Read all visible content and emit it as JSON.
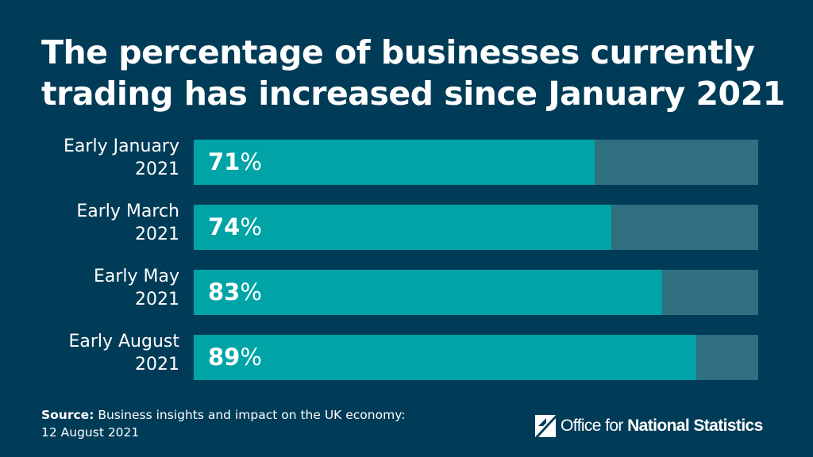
{
  "chart_data": {
    "type": "bar",
    "orientation": "horizontal",
    "title": "The percentage of businesses currently trading has increased since January 2021",
    "categories": [
      [
        "Early January",
        "2021"
      ],
      [
        "Early March",
        "2021"
      ],
      [
        "Early May",
        "2021"
      ],
      [
        "Early August",
        "2021"
      ]
    ],
    "values": [
      71,
      74,
      83,
      89
    ],
    "unit": "%",
    "xlim": [
      0,
      100
    ],
    "colors": {
      "bar": "#00a3a6",
      "track": "#2f6f80",
      "background": "#003c57"
    }
  },
  "footer": {
    "source_label": "Source:",
    "source_text": "Business insights and impact on the UK economy:",
    "source_date": "12 August 2021"
  },
  "logo": {
    "icon": "ons-logo-icon",
    "prefix": "Office for",
    "strong": "National Statistics"
  }
}
